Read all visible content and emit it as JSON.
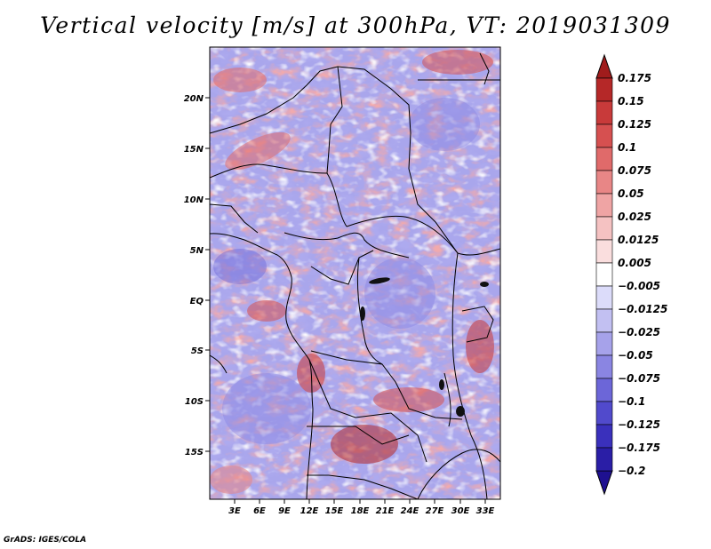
{
  "title": "Vertical velocity [m/s] at 300hPa, VT: 2019031309",
  "footer": "GrADS: IGES/COLA",
  "map": {
    "lat_labels": [
      "20N",
      "15N",
      "10N",
      "5N",
      "EQ",
      "5S",
      "10S",
      "15S"
    ],
    "lon_labels": [
      "3E",
      "6E",
      "9E",
      "12E",
      "15E",
      "18E",
      "21E",
      "24E",
      "27E",
      "30E",
      "33E"
    ]
  },
  "colorbar": {
    "labels": [
      "0.175",
      "0.15",
      "0.125",
      "0.1",
      "0.075",
      "0.05",
      "0.025",
      "0.0125",
      "0.005",
      "−0.005",
      "−0.0125",
      "−0.025",
      "−0.05",
      "−0.075",
      "−0.1",
      "−0.125",
      "−0.175",
      "−0.2"
    ],
    "colors": [
      "#a01c1c",
      "#b52828",
      "#c83a3a",
      "#d65050",
      "#e06a6a",
      "#e88686",
      "#efa4a4",
      "#f5c2c2",
      "#fadede",
      "#ffffff",
      "#dcdcfa",
      "#c2c0f2",
      "#a6a2ea",
      "#8a85e2",
      "#6c66d8",
      "#514acc",
      "#3a30bc",
      "#2a1ea6",
      "#1e1090"
    ]
  },
  "palette": {
    "red": "#e06a6a",
    "blue": "#7c78de",
    "white": "#ffffff"
  }
}
